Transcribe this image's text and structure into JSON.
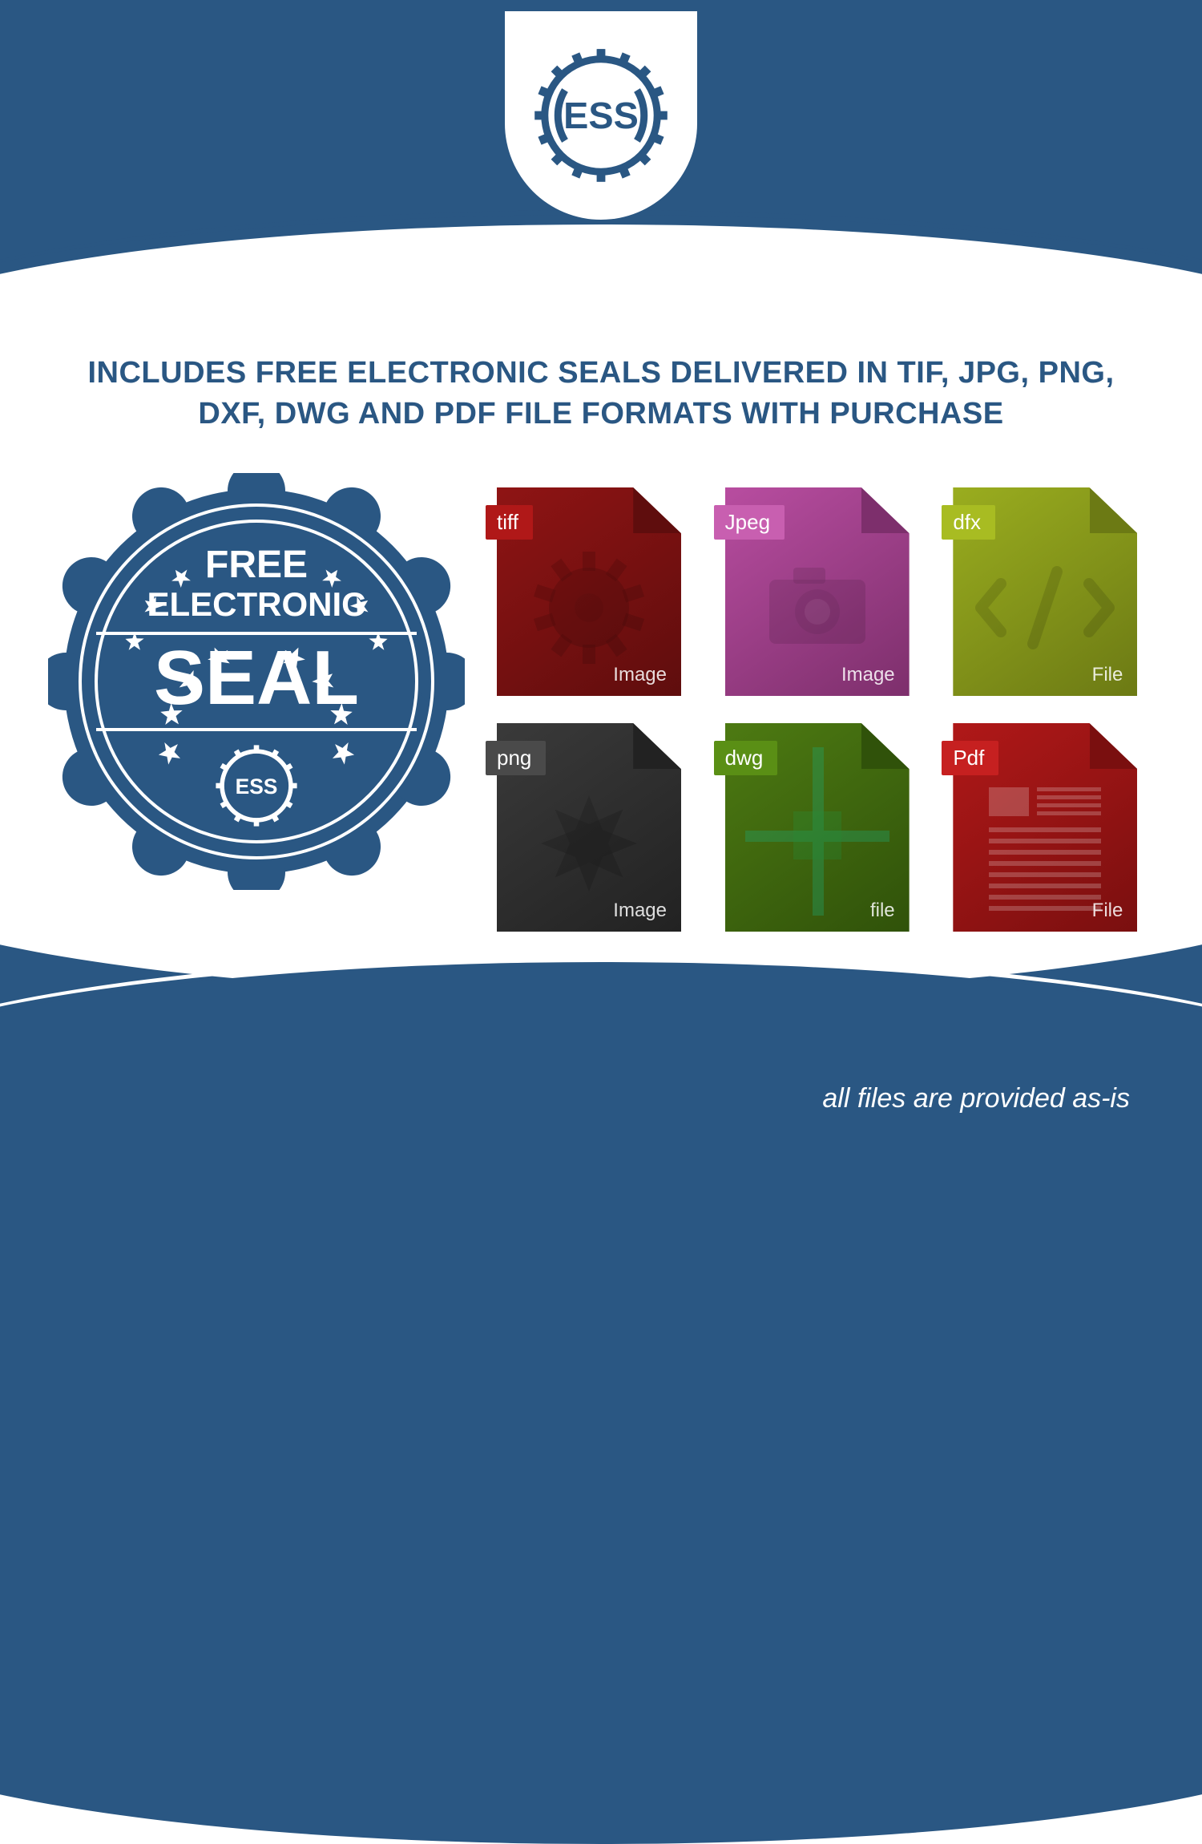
{
  "colors": {
    "brand_blue": "#2a5783",
    "white": "#ffffff"
  },
  "logo": {
    "text": "ESS",
    "text_color": "#2a5783",
    "gear_color": "#2a5783"
  },
  "headline": "INCLUDES FREE ELECTRONIC SEALS DELIVERED IN TIF, JPG, PNG, DXF, DWG AND PDF FILE FORMATS WITH PURCHASE",
  "seal": {
    "line1": "FREE",
    "line2": "ELECTRONIC",
    "line3": "SEAL",
    "inner_logo": "ESS",
    "badge_color": "#2a5783",
    "text_color": "#ffffff",
    "star_count": 10
  },
  "files": [
    {
      "tag": "tiff",
      "sub": "Image",
      "body_color": "#8f1414",
      "dark_color": "#5f0d0d",
      "tag_color": "#b01818",
      "deco": "gear"
    },
    {
      "tag": "Jpeg",
      "sub": "Image",
      "body_color": "#b84da0",
      "dark_color": "#7d2f6c",
      "tag_color": "#c85fb0",
      "deco": "camera"
    },
    {
      "tag": "dfx",
      "sub": "File",
      "body_color": "#9aad1f",
      "dark_color": "#6c7a14",
      "tag_color": "#a8bc22",
      "deco": "code"
    },
    {
      "tag": "png",
      "sub": "Image",
      "body_color": "#3a3a3a",
      "dark_color": "#222222",
      "tag_color": "#4a4a4a",
      "deco": "burst"
    },
    {
      "tag": "dwg",
      "sub": "file",
      "body_color": "#4d7a12",
      "dark_color": "#30520a",
      "tag_color": "#5a8f15",
      "deco": "cross"
    },
    {
      "tag": "Pdf",
      "sub": "File",
      "body_color": "#b01818",
      "dark_color": "#7a0f0f",
      "tag_color": "#c62020",
      "deco": "doclines"
    }
  ],
  "footer": "all files are provided as-is"
}
